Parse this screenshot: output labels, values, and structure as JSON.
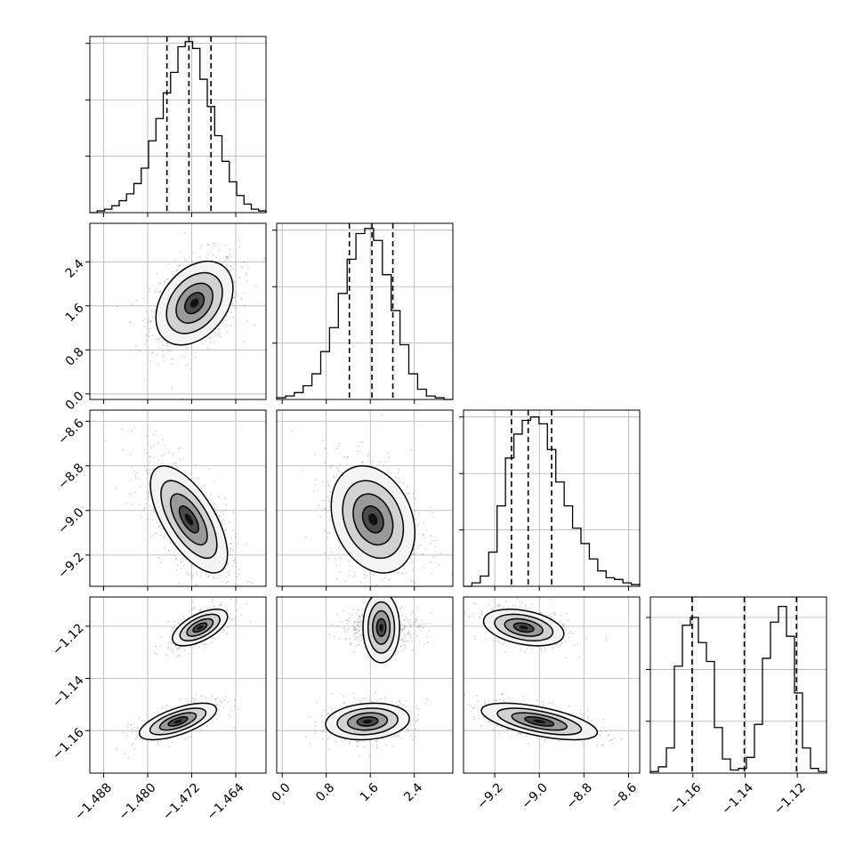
{
  "chart_data": {
    "type": "corner",
    "background": "#ffffff",
    "grid": true,
    "colors": {
      "axes": "#000000",
      "grid": "#b0b0b0",
      "density": "#000000",
      "points": "#808080"
    },
    "parameters": [
      {
        "range": [
          -1.4905,
          -1.4585
        ],
        "ticks": [
          -1.488,
          -1.48,
          -1.472,
          -1.464
        ],
        "tick_labels": [
          "−1.488",
          "−1.480",
          "−1.472",
          "−1.464"
        ],
        "quantiles": [
          -1.4765,
          -1.4725,
          -1.4685
        ]
      },
      {
        "range": [
          -0.1,
          3.1
        ],
        "ticks": [
          0.0,
          0.8,
          1.6,
          2.4
        ],
        "tick_labels": [
          "0.0",
          "0.8",
          "1.6",
          "2.4"
        ],
        "quantiles": [
          1.22,
          1.63,
          2.01
        ]
      },
      {
        "range": [
          -9.34,
          -8.55
        ],
        "ticks": [
          -9.2,
          -9.0,
          -8.8,
          -8.6
        ],
        "tick_labels": [
          "−9.2",
          "−9.0",
          "−8.8",
          "−8.6"
        ],
        "quantiles": [
          -9.125,
          -9.05,
          -8.945
        ]
      },
      {
        "range": [
          -1.1763,
          -1.1088
        ],
        "ticks": [
          -1.16,
          -1.14,
          -1.12
        ],
        "tick_labels": [
          "−1.16",
          "−1.14",
          "−1.12"
        ],
        "quantiles": [
          -1.1603,
          -1.1403,
          -1.1203
        ]
      }
    ],
    "histograms": [
      {
        "param": 0,
        "ylim": [
          0,
          1.03
        ],
        "counts": [
          0.0,
          0.01,
          0.02,
          0.04,
          0.07,
          0.11,
          0.17,
          0.26,
          0.42,
          0.55,
          0.7,
          0.82,
          0.97,
          1.0,
          0.96,
          0.78,
          0.62,
          0.45,
          0.3,
          0.18,
          0.1,
          0.05,
          0.02,
          0.01
        ]
      },
      {
        "param": 1,
        "ylim": [
          0,
          1.03
        ],
        "counts": [
          0.01,
          0.02,
          0.04,
          0.08,
          0.15,
          0.28,
          0.42,
          0.62,
          0.82,
          0.97,
          1.0,
          0.93,
          0.73,
          0.52,
          0.32,
          0.15,
          0.06,
          0.02,
          0.01,
          0.0
        ]
      },
      {
        "param": 2,
        "ylim": [
          0,
          1.03
        ],
        "counts": [
          0.0,
          0.02,
          0.06,
          0.2,
          0.47,
          0.75,
          0.89,
          0.97,
          0.99,
          0.95,
          0.8,
          0.61,
          0.47,
          0.34,
          0.25,
          0.16,
          0.09,
          0.05,
          0.04,
          0.02,
          0.01
        ]
      },
      {
        "param": 3,
        "ylim": [
          0,
          1.12
        ],
        "counts": [
          0.01,
          0.04,
          0.16,
          0.68,
          0.94,
          0.99,
          0.83,
          0.71,
          0.29,
          0.09,
          0.02,
          0.03,
          0.1,
          0.31,
          0.73,
          0.96,
          1.06,
          0.87,
          0.51,
          0.16,
          0.03,
          0.01
        ]
      }
    ],
    "pairs": [
      {
        "x": 0,
        "y": 1,
        "clusters": [
          {
            "mean": [
              -1.4715,
              1.65
            ],
            "sd": [
              0.0035,
              0.38
            ],
            "rho": 0.35,
            "weight": 1.0
          }
        ]
      },
      {
        "x": 0,
        "y": 2,
        "clusters": [
          {
            "mean": [
              -1.4725,
              -9.04
            ],
            "sd": [
              0.0035,
              0.12
            ],
            "rho": -0.65,
            "weight": 1.0
          }
        ]
      },
      {
        "x": 1,
        "y": 2,
        "clusters": [
          {
            "mean": [
              1.65,
              -9.04
            ],
            "sd": [
              0.38,
              0.12
            ],
            "rho": -0.25,
            "weight": 1.0
          }
        ]
      },
      {
        "x": 0,
        "y": 3,
        "clusters": [
          {
            "mean": [
              -1.4705,
              -1.1205
            ],
            "sd": [
              0.0025,
              0.0035
            ],
            "rho": 0.6,
            "weight": 0.5
          },
          {
            "mean": [
              -1.4745,
              -1.1565
            ],
            "sd": [
              0.0035,
              0.0035
            ],
            "rho": 0.65,
            "weight": 0.5
          }
        ]
      },
      {
        "x": 1,
        "y": 3,
        "clusters": [
          {
            "mean": [
              1.8,
              -1.1205
            ],
            "sd": [
              0.32,
              0.0035
            ],
            "rho": 0.0,
            "weight": 0.5
          },
          {
            "mean": [
              1.55,
              -1.1565
            ],
            "sd": [
              0.38,
              0.0035
            ],
            "rho": 0.15,
            "weight": 0.5
          }
        ]
      },
      {
        "x": 2,
        "y": 3,
        "clusters": [
          {
            "mean": [
              -9.07,
              -1.1205
            ],
            "sd": [
              0.09,
              0.0035
            ],
            "rho": -0.35,
            "weight": 0.5
          },
          {
            "mean": [
              -9.0,
              -1.1565
            ],
            "sd": [
              0.13,
              0.0035
            ],
            "rho": -0.6,
            "weight": 0.5
          }
        ]
      }
    ]
  }
}
